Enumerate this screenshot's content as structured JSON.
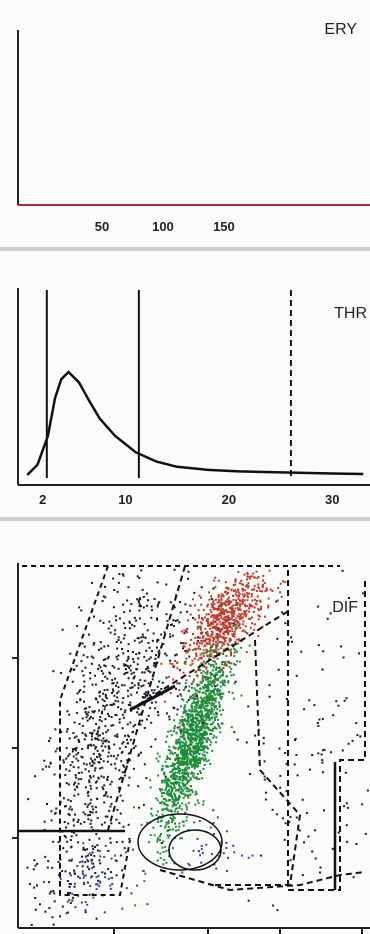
{
  "chart_data": [
    {
      "type": "line",
      "title": "ERY",
      "x_ticks": [
        50,
        100,
        150
      ],
      "xlim": [
        0,
        250
      ],
      "series": [
        {
          "x": [
            0,
            250
          ],
          "y": [
            0,
            0
          ]
        }
      ],
      "line_color": "#b22a3a"
    },
    {
      "type": "line",
      "title": "THR",
      "x_ticks": [
        2,
        10,
        20,
        30
      ],
      "xlim": [
        0,
        33
      ],
      "ylim": [
        0,
        1
      ],
      "series": [
        {
          "x": [
            0.5,
            1.5,
            2.5,
            3.2,
            3.8,
            4.5,
            5.5,
            6.5,
            7.5,
            9,
            11,
            13,
            15,
            18,
            21,
            25,
            30,
            33
          ],
          "y": [
            0.0,
            0.1,
            0.38,
            0.75,
            0.93,
            1.0,
            0.9,
            0.72,
            0.55,
            0.38,
            0.22,
            0.13,
            0.08,
            0.05,
            0.035,
            0.025,
            0.015,
            0.01
          ]
        }
      ],
      "vertical_lines": [
        {
          "x": 2.4,
          "style": "solid"
        },
        {
          "x": 11.3,
          "style": "solid"
        },
        {
          "x": 26,
          "style": "dashed"
        }
      ]
    },
    {
      "type": "scatter",
      "title": "DIF",
      "xlim": [
        0,
        1
      ],
      "ylim": [
        0,
        1
      ],
      "clusters": [
        {
          "color": "#1a1a2e",
          "n": 650,
          "cx": 0.21,
          "cy": 0.44,
          "sx": 0.085,
          "sy": 0.23,
          "rho": 0.55
        },
        {
          "color": "#1a1a2e",
          "n": 260,
          "cx": 0.35,
          "cy": 0.76,
          "sx": 0.09,
          "sy": 0.13,
          "rho": 0.2
        },
        {
          "color": "#c0392b",
          "n": 700,
          "cx": 0.58,
          "cy": 0.85,
          "sx": 0.06,
          "sy": 0.07,
          "rho": 0.65
        },
        {
          "color": "#1e8c3a",
          "n": 1400,
          "cx": 0.49,
          "cy": 0.52,
          "sx": 0.05,
          "sy": 0.13,
          "rho": 0.8
        },
        {
          "color": "#2e4aa8",
          "n": 70,
          "cx": 0.2,
          "cy": 0.13,
          "sx": 0.05,
          "sy": 0.04,
          "rho": 0
        },
        {
          "color": "#2e4aa8",
          "n": 40,
          "cx": 0.55,
          "cy": 0.22,
          "sx": 0.05,
          "sy": 0.05,
          "rho": 0
        },
        {
          "color": "#1a1a2e",
          "n": 140,
          "cx": 0.82,
          "cy": 0.45,
          "sx": 0.13,
          "sy": 0.27,
          "rho": 0
        }
      ]
    }
  ]
}
